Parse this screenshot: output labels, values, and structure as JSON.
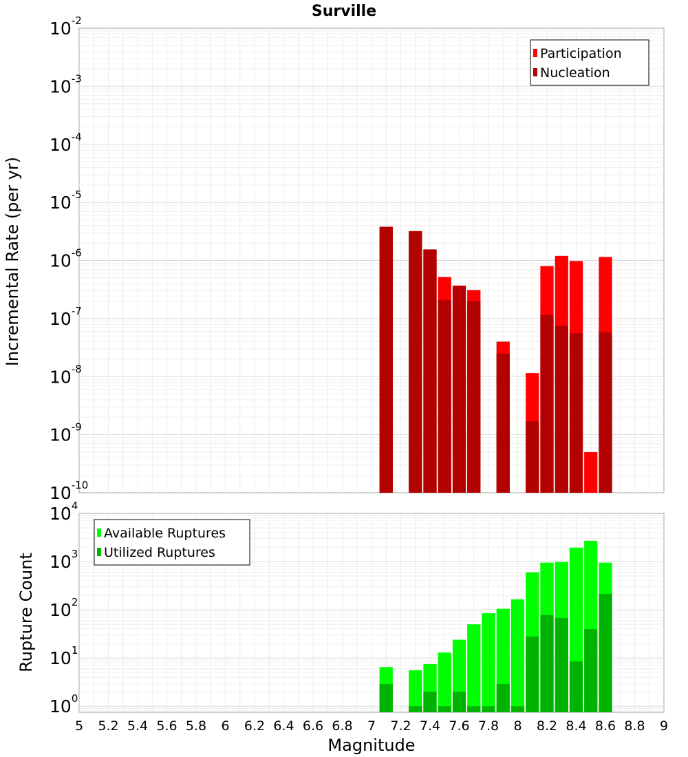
{
  "chart_data": [
    {
      "type": "bar",
      "title": "Surville",
      "xlabel": "",
      "ylabel": "Incremental Rate (per yr)",
      "xlim": [
        5,
        9
      ],
      "ylim": [
        1e-10,
        0.01
      ],
      "yscale": "log",
      "ytick_exponents": [
        -10,
        -9,
        -8,
        -7,
        -6,
        -5,
        -4,
        -3,
        -2
      ],
      "legend_position": "top-right",
      "bar_width": 0.1,
      "x": [
        7.1,
        7.2,
        7.3,
        7.4,
        7.5,
        7.6,
        7.7,
        7.8,
        7.9,
        8.0,
        8.1,
        8.2,
        8.3,
        8.4,
        8.5,
        8.6
      ],
      "series": [
        {
          "name": "Participation",
          "color": "#ff0000",
          "values": [
            3.8e-06,
            null,
            3.2e-06,
            1.55e-06,
            5.2e-07,
            3.7e-07,
            3.1e-07,
            null,
            4e-08,
            null,
            1.15e-08,
            8e-07,
            1.2e-06,
            9.8e-07,
            5e-10,
            1.15e-06
          ]
        },
        {
          "name": "Nucleation",
          "color": "#b30000",
          "values": [
            3.8e-06,
            null,
            3.2e-06,
            1.55e-06,
            2.1e-07,
            3.6e-07,
            2e-07,
            null,
            2.5e-08,
            null,
            1.7e-09,
            1.15e-07,
            7.5e-08,
            5.6e-08,
            null,
            5.8e-08
          ]
        }
      ]
    },
    {
      "type": "bar",
      "title": "",
      "xlabel": "Magnitude",
      "ylabel": "Rupture Count",
      "xlim": [
        5,
        9
      ],
      "ylim": [
        0.75,
        10000
      ],
      "yscale": "log",
      "ytick_exponents": [
        0,
        1,
        2,
        3,
        4
      ],
      "xticks": [
        "5",
        "5.2",
        "5.4",
        "5.6",
        "5.8",
        "6",
        "6.2",
        "6.4",
        "6.6",
        "6.8",
        "7",
        "7.2",
        "7.4",
        "7.6",
        "7.8",
        "8",
        "8.2",
        "8.4",
        "8.6",
        "8.8",
        "9"
      ],
      "legend_position": "top-left",
      "bar_width": 0.1,
      "x": [
        7.1,
        7.2,
        7.3,
        7.4,
        7.5,
        7.6,
        7.7,
        7.8,
        7.9,
        8.0,
        8.1,
        8.2,
        8.3,
        8.4,
        8.5,
        8.6
      ],
      "series": [
        {
          "name": "Available Ruptures",
          "color": "#00ff00",
          "values": [
            6.5,
            null,
            5.6,
            7.5,
            13,
            24,
            50,
            85,
            105,
            165,
            600,
            950,
            980,
            1950,
            2700,
            950
          ]
        },
        {
          "name": "Utilized Ruptures",
          "color": "#00b300",
          "values": [
            2.9,
            null,
            1,
            2,
            1,
            2,
            1,
            1,
            2.9,
            1,
            28,
            78,
            68,
            8.5,
            40,
            215
          ]
        }
      ]
    }
  ]
}
